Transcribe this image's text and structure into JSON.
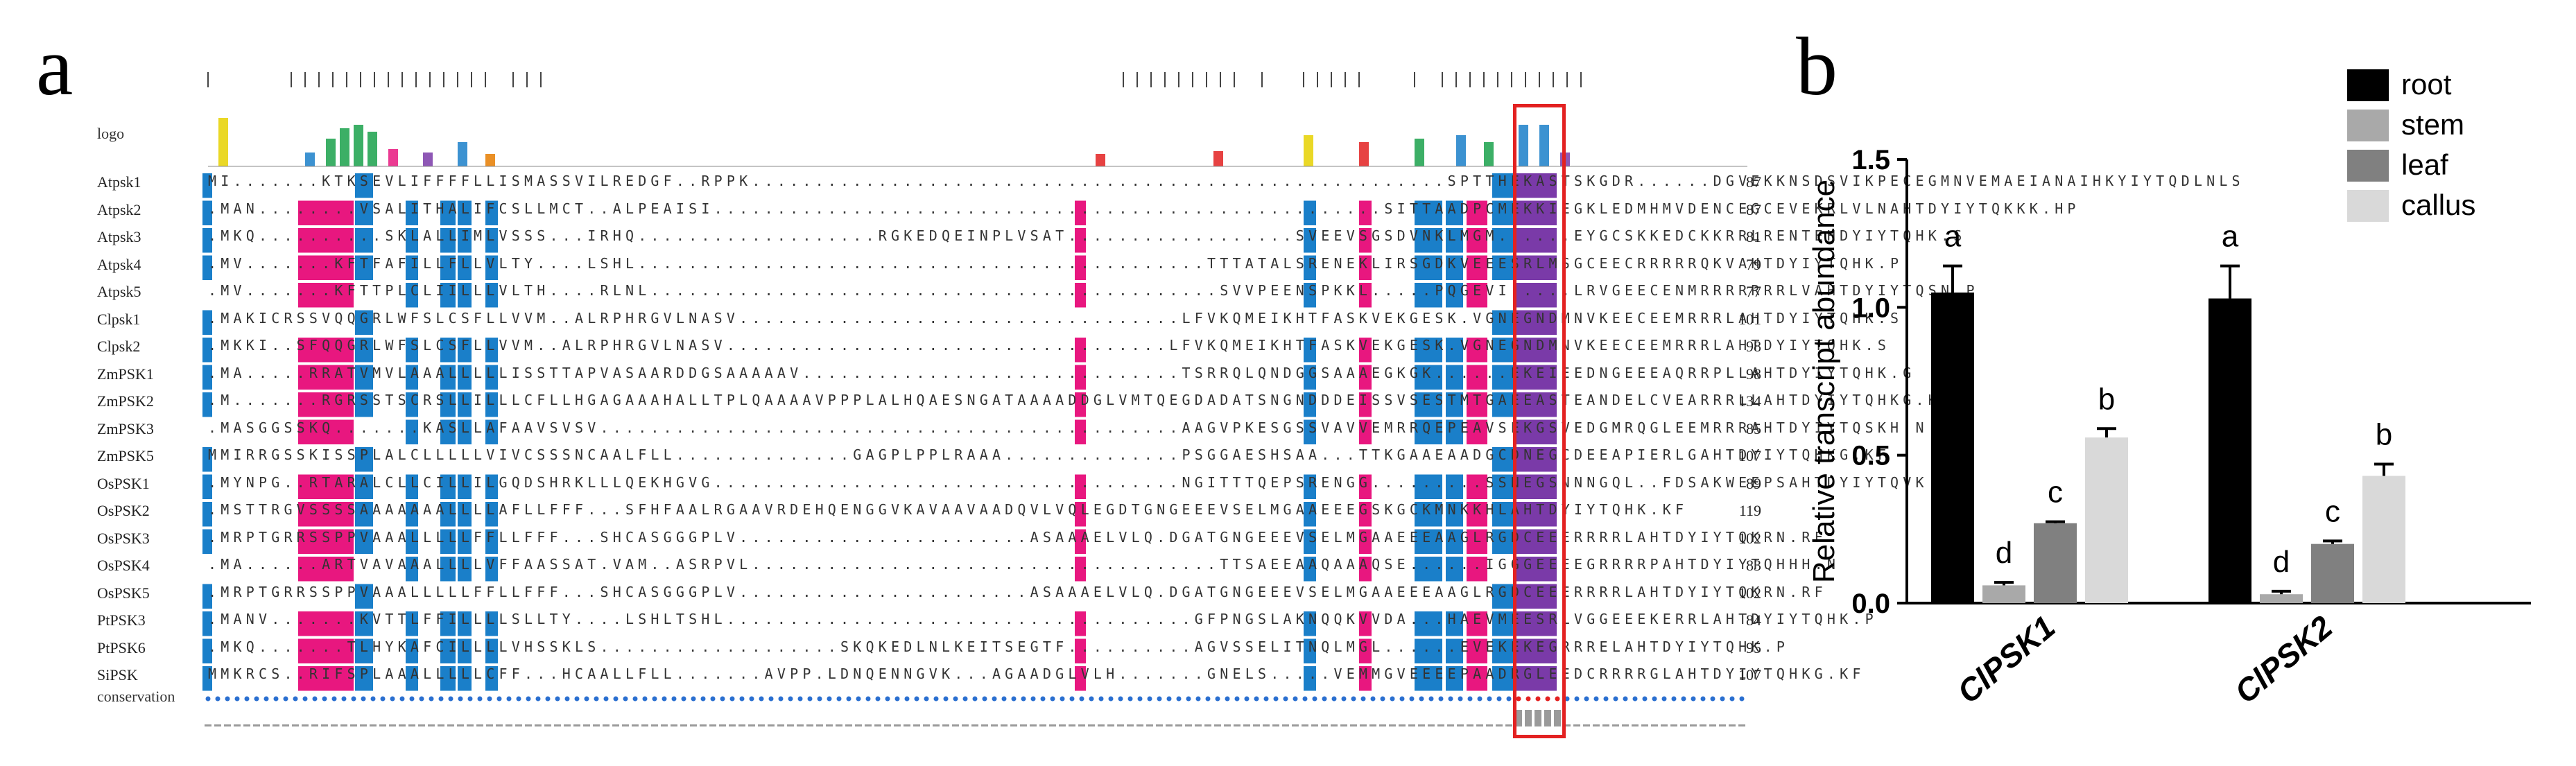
{
  "panels": {
    "a": {
      "letter": "a"
    },
    "b": {
      "letter": "b"
    }
  },
  "alignment": {
    "logo_label": "logo",
    "conservation_label": "conservation",
    "sequences": [
      {
        "name": "Atpsk1",
        "length": "87",
        "text": "MI.......KTKSEVLIFFFFLLISMASSVILREDGF..RPPK.......................................................SPTTHEKASTSKGDR......DGVEKKNSDSVIKPECEGMNVEMAEIANAIHKYIYTQDLNLS"
      },
      {
        "name": "Atpsk2",
        "length": "87",
        "text": ".MAN........VSALITHALIFCSLLMCT..ALPEAISI.....................................................SITTAADPCMEKKIEGKLEDMHMVDENCEGCEVEKRLVLNAHTDYIYTQKKK.HP"
      },
      {
        "name": "Atpsk3",
        "length": "81",
        "text": ".MKQ..........SKLALLIMLVSSS...IRHQ...................RGKEDQEINPLVSAT..................SVEEVSGSDVNKLMGM......EYGCSKKEDCKKRRLRENTEHDYIYTQHK.S"
      },
      {
        "name": "Atpsk4",
        "length": "79",
        "text": ".MV.......KFTFAFILLFLLVLTY....LSHL.............................................TTTATALSRENEKLIRSGDKVEEESRLMSGCEECRRRRRQKVAHTDYIYTQHK.P"
      },
      {
        "name": "Atpsk5",
        "length": "77",
        "text": ".MV.......KFTTPLCLIILLLVLTH....RLNL.............................................SVVPEENSPKKL.....PQGEVI.....LRVGEECENMRRRRRRRLVAHTDYIYTQSN.P"
      },
      {
        "name": "Clpsk1",
        "length": "101",
        "text": ".MAKICRSSVQQGRLWFSLCSFLLVVM..ALRPHRGVLNASV...................................LFVKQMEIKHTFASKVEKGESK.VGNEGNDMNVKEECEEMRRRLAHTDYIYTQHK.S"
      },
      {
        "name": "Clpsk2",
        "length": "98",
        "text": ".MKKI..SFQQGRLWFSLCSFLLVVM..ALRPHRGVLNASV...................................LFVKQMEIKHTFASKVEKGESK.VGNEGNDMNVKEECEEMRRRLAHTDYIYTQHK.S"
      },
      {
        "name": "ZmPSK1",
        "length": "98",
        "text": ".MA.....RRATVMVLAAALLLLLISSTTAPVASAARDDGSAAAAAV..............................TSRRQLQNDGGSAAAEGKGK......EKEIEEDNGEEEAQRRPLLAHTDYIYTQHK.G"
      },
      {
        "name": "ZmPSK2",
        "length": "134",
        "text": ".M.......RGRSSTSCRSLLILLLCFLLHGAGAAAHALLTPLQAAAAVPPPLALHQAESNGATAAAADDGLVMTQEGDADATSNGNDDDEISSVSESTMTGAEEASTEANDELCVEARRRLLAHTDYIYTQHKG.KF"
      },
      {
        "name": "ZmPSK3",
        "length": "85",
        "text": ".MASGGSSKQ.......KASLLAFAAVSVSV..............................................AAGVPKESGSSVAVVEMRRQEPEAVSEKGSVEDGMRQGLEEMRRRAHTDYIYTQSKH.N"
      },
      {
        "name": "ZmPSK5",
        "length": "107",
        "text": "MMIRRGSSKISSPLALCLLLLLVIVCSSSNCAALFLL..............GAGPLPPLRAAA..............PSGGAESHSAA...TTKGAAEAADGCDNEGCDEEAPIERLGAHTDYIYTQHKG.KF"
      },
      {
        "name": "OsPSK1",
        "length": "89",
        "text": ".MYNPG..RTARALCLLCILLILGQDSHRKLLLQEKHGVG.....................................NGITTTQEPSRENGG.........SSNEGSNNNGQL..FDSAKWEEPSAHTDYIYTQVK.KF"
      },
      {
        "name": "OsPSK2",
        "length": "119",
        "text": ".MSTTRGVSSSSAAAAAAALLLLAFLLFFF...SFHFAALRGAAVRDEHQENGGVKAVAAVAADQVLVQLEGDTGNGEEEVSELMGAAEEEGSKGCKMNKKHLAHTDYIYTQHK.KF"
      },
      {
        "name": "OsPSK3",
        "length": "102",
        "text": ".MRPTGRRSSPPVAAALLLLLFFLLFFF...SHCASGGGPLV.......................ASAAAELVLQ.DGATGNGEEEVSELMGAAEEEAAGLRGDCEEERRRRLAHTDYIYTQKRN.RF"
      },
      {
        "name": "OsPSK4",
        "length": "83",
        "text": ".MA......ARTVAVAAALLLLVFFAASSAT.VAM..ASRPVL.....................................TTSAEEAAQAAAQSE......IGGGEEEEGRRRRPAHTDYIYTQHHH.N"
      },
      {
        "name": "OsPSK5",
        "length": "102",
        "text": ".MRPTGRRSSPPVAAALLLLLFFLLFFF...SHCASGGGPLV.......................ASAAAELVLQ.DGATGNGEEEVSELMGAAEEEAAGLRGDCEEERRRRLAHTDYIYTQKRN.RF"
      },
      {
        "name": "PtPSK3",
        "length": "84",
        "text": ".MANV.......KVTTLFFILLLLSLLTY....LSHLTSHL.....................................GFPNGSLAKNQQKVVDA...HAEVMEESRLVGGEEEKERRLAHTDYIYTQHK.P"
      },
      {
        "name": "PtPSK6",
        "length": "95",
        "text": ".MKQ.......TLHYKAFCILLLLVHSSKLS...................SKQKEDLNLKEITSEGTF..........AGVSSELITNQLMGL......EVEKEKEGRRRELAHTDYIYTQHK.P"
      },
      {
        "name": "SiPSK",
        "length": "107",
        "text": "MMKRCS..RIFSPLAAALLLLLCFF...HCAALLFLL.......AVPP.LDNQENNGVK...AGAADGLVLH.......GNELS.....VEMMGVEEEEPAADRGLEEDCRRRRGLAHTDYIYTQHKG.KF"
      }
    ],
    "colors": {
      "pink": "#e8177f",
      "blue": "#1a7fc9",
      "purple": "#7a3aa8",
      "box": "#e32121",
      "gray": "#9a9a9a"
    }
  },
  "chart_data": {
    "type": "bar",
    "ylabel": "Relative  transcript abundance",
    "ylim": [
      0,
      1.5
    ],
    "yticks": [
      "0.0",
      "0.5",
      "1.0",
      "1.5"
    ],
    "categories": [
      "ClPSK1",
      "ClPSK2"
    ],
    "series": [
      {
        "name": "root",
        "color": "#000000",
        "values": [
          1.05,
          1.03
        ],
        "errors": [
          0.09,
          0.11
        ],
        "letters": [
          "a",
          "a"
        ]
      },
      {
        "name": "stem",
        "color": "#a9a9a9",
        "values": [
          0.06,
          0.03
        ],
        "errors": [
          0.01,
          0.01
        ],
        "letters": [
          "d",
          "d"
        ]
      },
      {
        "name": "leaf",
        "color": "#808080",
        "values": [
          0.27,
          0.2
        ],
        "errors": [
          0.005,
          0.01
        ],
        "letters": [
          "c",
          "c"
        ]
      },
      {
        "name": "callus",
        "color": "#d9d9d9",
        "values": [
          0.56,
          0.43
        ],
        "errors": [
          0.03,
          0.04
        ],
        "letters": [
          "b",
          "b"
        ]
      }
    ],
    "legend_position": "top-right"
  }
}
